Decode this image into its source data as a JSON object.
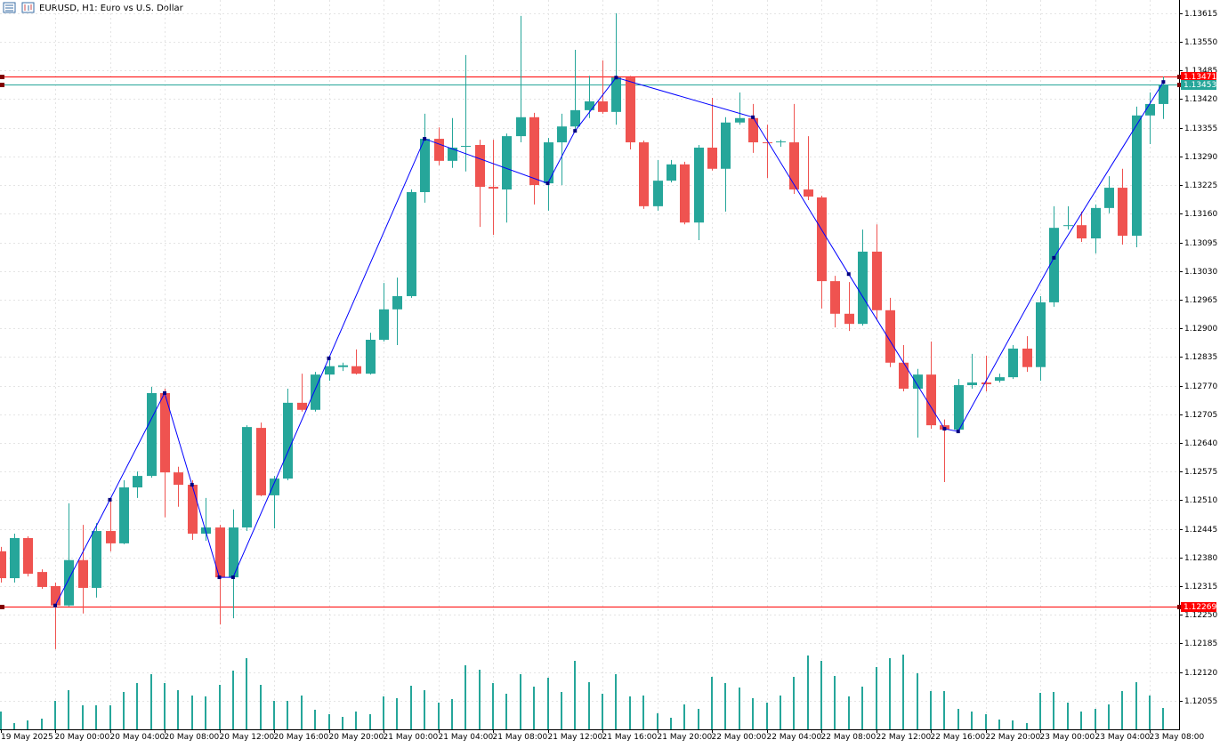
{
  "chart_data": {
    "type": "candlestick",
    "title": "EURUSD, H1:  Euro vs U.S. Dollar",
    "categories": [
      "19 May 2025",
      null,
      null,
      null,
      "20 May 00:00",
      null,
      null,
      null,
      "20 May 04:00",
      null,
      null,
      null,
      "20 May 08:00",
      null,
      null,
      null,
      "20 May 12:00",
      null,
      null,
      null,
      "20 May 16:00",
      null,
      null,
      null,
      "20 May 20:00",
      null,
      null,
      null,
      "21 May 00:00",
      null,
      null,
      null,
      "21 May 04:00",
      null,
      null,
      null,
      "21 May 08:00",
      null,
      null,
      null,
      "21 May 12:00",
      null,
      null,
      null,
      "21 May 16:00",
      null,
      null,
      null,
      "21 May 20:00",
      null,
      null,
      null,
      "22 May 00:00",
      null,
      null,
      null,
      "22 May 04:00",
      null,
      null,
      null,
      "22 May 08:00",
      null,
      null,
      null,
      "22 May 12:00",
      null,
      null,
      null,
      "22 May 16:00",
      null,
      null,
      null,
      "22 May 20:00",
      null,
      null,
      null,
      "23 May 00:00",
      null,
      null,
      null,
      "23 May 04:00",
      null,
      null,
      null,
      "23 May 08:00",
      null
    ],
    "open": [
      1.12394,
      1.12333,
      1.12424,
      1.12347,
      1.12315,
      1.12271,
      1.12374,
      1.12311,
      1.1244,
      1.12412,
      1.12539,
      1.12565,
      1.12753,
      1.12573,
      1.12545,
      1.12434,
      1.12448,
      1.12335,
      1.12448,
      1.12674,
      1.12521,
      1.12559,
      1.12731,
      1.12715,
      1.12795,
      1.12812,
      1.12814,
      1.12797,
      1.12874,
      1.12943,
      1.12973,
      1.13209,
      1.1333,
      1.1328,
      1.13312,
      1.13316,
      1.13221,
      1.13215,
      1.13336,
      1.13379,
      1.13229,
      1.13322,
      1.13358,
      1.13395,
      1.13415,
      1.13391,
      1.13469,
      1.13322,
      1.13177,
      1.13235,
      1.13272,
      1.1314,
      1.1331,
      1.13262,
      1.13367,
      1.13377,
      1.13322,
      1.13322,
      1.13322,
      1.13215,
      1.13197,
      1.13007,
      1.12933,
      1.1291,
      1.13074,
      1.12941,
      1.12822,
      1.12763,
      1.12795,
      1.1268,
      1.1267,
      1.12771,
      1.12777,
      1.12781,
      1.12789,
      1.12854,
      1.12812,
      1.12959,
      1.13132,
      1.13134,
      1.13104,
      1.13173,
      1.13219,
      1.1311,
      1.13383,
      1.13409
    ],
    "high": [
      1.12404,
      1.12434,
      1.12428,
      1.12353,
      1.12323,
      1.12503,
      1.12454,
      1.12458,
      1.12515,
      1.12555,
      1.12575,
      1.12767,
      1.12763,
      1.12586,
      1.12555,
      1.12515,
      1.12454,
      1.12489,
      1.1268,
      1.12686,
      1.12565,
      1.12763,
      1.12797,
      1.12801,
      1.12838,
      1.12822,
      1.12852,
      1.1289,
      1.13003,
      1.13015,
      1.13215,
      1.13387,
      1.13356,
      1.13377,
      1.1352,
      1.13328,
      1.13328,
      1.13342,
      1.13609,
      1.13389,
      1.13332,
      1.13387,
      1.13532,
      1.13473,
      1.13508,
      1.13615,
      1.13473,
      1.13326,
      1.13282,
      1.13282,
      1.13278,
      1.13316,
      1.13423,
      1.13379,
      1.13435,
      1.13409,
      1.13362,
      1.13328,
      1.13409,
      1.13336,
      1.13201,
      1.13019,
      1.13005,
      1.13124,
      1.13136,
      1.12969,
      1.12862,
      1.12808,
      1.1287,
      1.12693,
      1.12785,
      1.12842,
      1.12838,
      1.12797,
      1.12862,
      1.12882,
      1.12973,
      1.13177,
      1.13177,
      1.13165,
      1.13181,
      1.13245,
      1.13262,
      1.13403,
      1.13435,
      1.13471
    ],
    "low": [
      1.12323,
      1.12323,
      1.12337,
      1.12309,
      1.12172,
      1.12269,
      1.12253,
      1.12289,
      1.12394,
      1.1241,
      1.12515,
      1.12561,
      1.12471,
      1.12495,
      1.1242,
      1.12418,
      1.12228,
      1.12242,
      1.1244,
      1.12519,
      1.12446,
      1.12555,
      1.12711,
      1.12711,
      1.12781,
      1.12803,
      1.12795,
      1.12795,
      1.1287,
      1.12862,
      1.12969,
      1.13185,
      1.1327,
      1.13264,
      1.13256,
      1.1313,
      1.13112,
      1.1314,
      1.13322,
      1.13181,
      1.13167,
      1.13225,
      1.13348,
      1.13377,
      1.13387,
      1.13362,
      1.13306,
      1.13171,
      1.13167,
      1.13231,
      1.13136,
      1.131,
      1.13258,
      1.13165,
      1.13362,
      1.13298,
      1.13241,
      1.13312,
      1.13205,
      1.13191,
      1.12945,
      1.12902,
      1.12894,
      1.12906,
      1.12919,
      1.12812,
      1.12757,
      1.12652,
      1.12672,
      1.12551,
      1.12662,
      1.12763,
      1.12757,
      1.12777,
      1.12785,
      1.12801,
      1.12781,
      1.12949,
      1.13124,
      1.13096,
      1.1307,
      1.13161,
      1.1309,
      1.13084,
      1.13318,
      1.13375
    ],
    "close": [
      1.12333,
      1.12424,
      1.12343,
      1.12313,
      1.12271,
      1.12374,
      1.12311,
      1.1244,
      1.12412,
      1.12539,
      1.12565,
      1.12753,
      1.12573,
      1.12545,
      1.12434,
      1.12448,
      1.12335,
      1.12448,
      1.12676,
      1.12521,
      1.12559,
      1.12731,
      1.12715,
      1.12795,
      1.12814,
      1.12816,
      1.12797,
      1.12874,
      1.12943,
      1.12973,
      1.13209,
      1.1333,
      1.1328,
      1.1331,
      1.13314,
      1.13221,
      1.13217,
      1.13336,
      1.13379,
      1.13225,
      1.13322,
      1.13358,
      1.13395,
      1.13415,
      1.13391,
      1.13469,
      1.13322,
      1.13177,
      1.13235,
      1.13272,
      1.1314,
      1.1331,
      1.13262,
      1.13367,
      1.13377,
      1.13322,
      1.1332,
      1.13324,
      1.13215,
      1.13199,
      1.13007,
      1.12933,
      1.1291,
      1.13074,
      1.12941,
      1.12822,
      1.12763,
      1.12795,
      1.1268,
      1.1267,
      1.12771,
      1.12777,
      1.12773,
      1.12789,
      1.12854,
      1.12812,
      1.12959,
      1.13128,
      1.13134,
      1.13104,
      1.13173,
      1.13219,
      1.1311,
      1.13383,
      1.13409,
      1.13453
    ],
    "up_color": "#26a69a",
    "down_color": "#ef5350",
    "volumes": [
      2000,
      700,
      1000,
      1200,
      3200,
      4400,
      2700,
      2700,
      2700,
      4200,
      5200,
      6200,
      5200,
      4400,
      3800,
      3700,
      5000,
      6600,
      8000,
      5000,
      3200,
      3200,
      3800,
      2200,
      1700,
      1400,
      2000,
      1700,
      3700,
      3500,
      4900,
      4400,
      3000,
      3400,
      7200,
      6700,
      5200,
      4000,
      6200,
      4800,
      5800,
      4200,
      7700,
      5300,
      4000,
      6200,
      3700,
      3800,
      1800,
      1300,
      2800,
      2300,
      5900,
      5200,
      4700,
      3500,
      3000,
      3800,
      5900,
      8300,
      7700,
      6000,
      3700,
      4800,
      7000,
      8000,
      8400,
      6300,
      4300,
      4300,
      2300,
      2000,
      1700,
      1100,
      1000,
      700,
      4100,
      4200,
      3000,
      2000,
      2300,
      2800,
      4300,
      5300,
      3800,
      2400
    ],
    "volume_color": "#26a69a",
    "volume_lim": [
      0,
      10000
    ],
    "ylim": [
      1.1199,
      1.13645
    ],
    "yticks": [
      1.13615,
      {
        "value": 1.1355,
        "label": "1.13550"
      },
      1.13485,
      {
        "value": 1.1342,
        "label": "1.13420"
      },
      1.13355,
      {
        "value": 1.1329,
        "label": "1.13290"
      },
      1.13225,
      {
        "value": 1.1316,
        "label": "1.13160"
      },
      1.13095,
      {
        "value": 1.1303,
        "label": "1.13030"
      },
      1.12965,
      {
        "value": 1.129,
        "label": "1.12900"
      },
      1.12835,
      {
        "value": 1.1277,
        "label": "1.12770"
      },
      1.12705,
      {
        "value": 1.1264,
        "label": "1.12640"
      },
      1.12575,
      {
        "value": 1.1251,
        "label": "1.12510"
      },
      1.12445,
      {
        "value": 1.1238,
        "label": "1.12380"
      },
      1.12315,
      {
        "value": 1.1225,
        "label": "1.12250"
      },
      1.12185,
      {
        "value": 1.1212,
        "label": "1.12120"
      },
      1.12055
    ],
    "grid": true,
    "hlines": [
      {
        "value": 1.13471,
        "color": "#ff0000"
      },
      {
        "value": 1.13453,
        "color": "#26a69a"
      },
      {
        "value": 1.12269,
        "color": "#ff0000"
      }
    ],
    "zigzag": {
      "color": "#0000ff",
      "x": [
        4,
        8,
        12,
        14,
        16,
        17,
        24,
        31,
        40,
        42,
        45,
        55,
        62,
        69,
        70,
        77,
        85
      ],
      "values": [
        1.12271,
        1.12511,
        1.12753,
        1.12545,
        1.12335,
        1.12335,
        1.12832,
        1.1333,
        1.13229,
        1.13348,
        1.13469,
        1.13379,
        1.13023,
        1.12672,
        1.12666,
        1.1306,
        1.13459
      ]
    }
  }
}
